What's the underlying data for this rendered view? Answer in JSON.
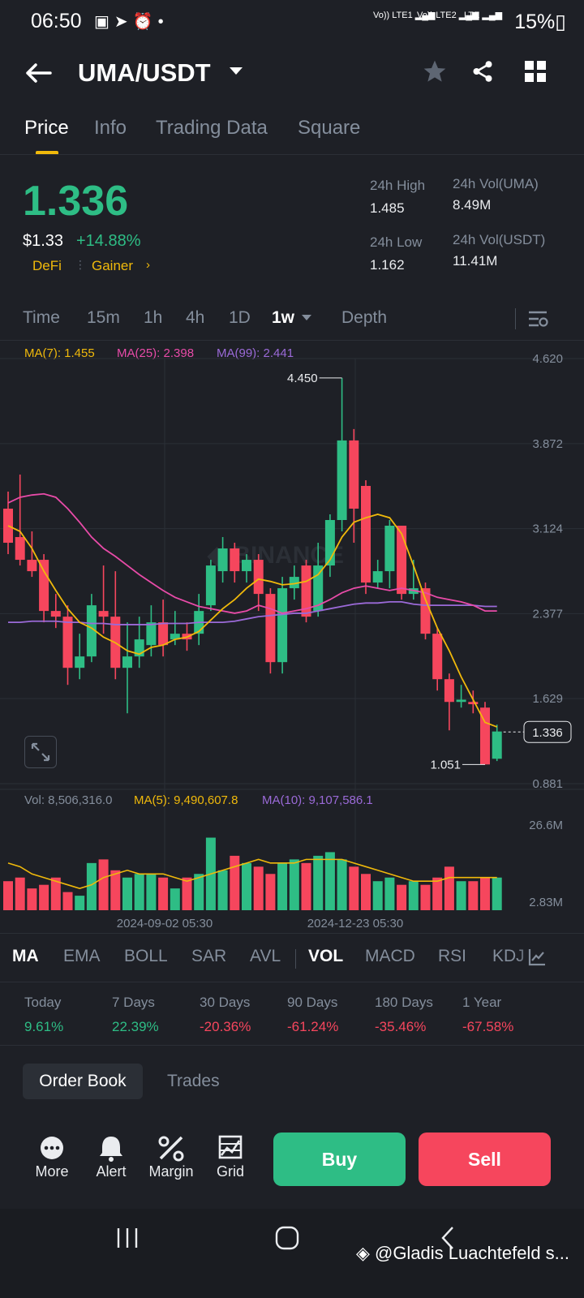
{
  "status_bar": {
    "time": "06:50",
    "left_icons": [
      "image-icon",
      "telegram-icon",
      "alarm-icon",
      "dot-icon"
    ],
    "sim1": "Vo)) LTE1",
    "sim2": "Vo)) LTE2",
    "lte": "LTE",
    "battery": "15%"
  },
  "header": {
    "pair": "UMA/USDT"
  },
  "tabs": [
    "Price",
    "Info",
    "Trading Data",
    "Square"
  ],
  "ticker": {
    "price": "1.336",
    "usd_price": "$1.33",
    "change": "+14.88%",
    "tag1": "DeFi",
    "tag2": "Gainer",
    "high_label": "24h High",
    "high": "1.485",
    "low_label": "24h Low",
    "low": "1.162",
    "vol_base_label": "24h Vol(UMA)",
    "vol_base": "8.49M",
    "vol_quote_label": "24h Vol(USDT)",
    "vol_quote": "11.41M"
  },
  "timeframes": [
    "Time",
    "15m",
    "1h",
    "4h",
    "1D",
    "1w",
    "Depth"
  ],
  "ma_legend": {
    "ma7": "MA(7): 1.455",
    "ma25": "MA(25): 2.398",
    "ma99": "MA(99): 2.441"
  },
  "vol_legend": {
    "vol": "Vol: 8,506,316.0",
    "ma5": "MA(5): 9,490,607.8",
    "ma10": "MA(10): 9,107,586.1"
  },
  "chart_data": {
    "type": "candlestick",
    "price_axis": [
      "4.620",
      "3.872",
      "3.124",
      "2.377",
      "1.629",
      "0.881"
    ],
    "ylim": [
      0.881,
      4.62
    ],
    "vol_axis": [
      "26.6M",
      "2.83M"
    ],
    "x_labels": [
      "2024-09-02 05:30",
      "2024-12-23 05:30"
    ],
    "annotations": {
      "max": "4.450",
      "min": "1.051",
      "last": "1.336"
    },
    "candles": [
      {
        "o": 3.3,
        "c": 3.0,
        "h": 3.45,
        "l": 2.9
      },
      {
        "o": 3.05,
        "c": 2.85,
        "h": 3.6,
        "l": 2.8
      },
      {
        "o": 2.85,
        "c": 2.75,
        "h": 3.1,
        "l": 2.7
      },
      {
        "o": 2.85,
        "c": 2.4,
        "h": 2.9,
        "l": 2.3
      },
      {
        "o": 2.4,
        "c": 2.35,
        "h": 2.55,
        "l": 2.25
      },
      {
        "o": 2.35,
        "c": 1.9,
        "h": 2.45,
        "l": 1.75
      },
      {
        "o": 1.9,
        "c": 2.0,
        "h": 2.2,
        "l": 1.8
      },
      {
        "o": 2.0,
        "c": 2.45,
        "h": 2.55,
        "l": 1.95
      },
      {
        "o": 2.4,
        "c": 2.35,
        "h": 2.8,
        "l": 2.2
      },
      {
        "o": 2.35,
        "c": 1.9,
        "h": 2.75,
        "l": 1.8
      },
      {
        "o": 1.9,
        "c": 2.0,
        "h": 2.3,
        "l": 1.5
      },
      {
        "o": 2.0,
        "c": 2.15,
        "h": 2.35,
        "l": 1.9
      },
      {
        "o": 2.1,
        "c": 2.3,
        "h": 2.45,
        "l": 2.0
      },
      {
        "o": 2.3,
        "c": 2.1,
        "h": 2.5,
        "l": 2.0
      },
      {
        "o": 2.15,
        "c": 2.2,
        "h": 2.4,
        "l": 2.1
      },
      {
        "o": 2.2,
        "c": 2.15,
        "h": 2.3,
        "l": 2.05
      },
      {
        "o": 2.2,
        "c": 2.4,
        "h": 2.55,
        "l": 2.1
      },
      {
        "o": 2.45,
        "c": 2.8,
        "h": 2.85,
        "l": 2.4
      },
      {
        "o": 2.75,
        "c": 2.95,
        "h": 3.05,
        "l": 2.65
      },
      {
        "o": 2.95,
        "c": 2.75,
        "h": 3.0,
        "l": 2.65
      },
      {
        "o": 2.75,
        "c": 2.85,
        "h": 2.9,
        "l": 2.65
      },
      {
        "o": 2.85,
        "c": 2.55,
        "h": 2.9,
        "l": 2.4
      },
      {
        "o": 2.55,
        "c": 1.95,
        "h": 2.6,
        "l": 1.85
      },
      {
        "o": 1.95,
        "c": 2.6,
        "h": 2.7,
        "l": 1.85
      },
      {
        "o": 2.6,
        "c": 2.7,
        "h": 2.8,
        "l": 2.5
      },
      {
        "o": 2.8,
        "c": 2.35,
        "h": 2.85,
        "l": 2.3
      },
      {
        "o": 2.4,
        "c": 2.8,
        "h": 3.0,
        "l": 2.35
      },
      {
        "o": 2.8,
        "c": 3.2,
        "h": 3.25,
        "l": 2.7
      },
      {
        "o": 3.2,
        "c": 3.9,
        "h": 4.45,
        "l": 3.1
      },
      {
        "o": 3.9,
        "c": 3.3,
        "h": 4.0,
        "l": 3.0
      },
      {
        "o": 3.5,
        "c": 2.65,
        "h": 3.55,
        "l": 2.55
      },
      {
        "o": 2.65,
        "c": 2.75,
        "h": 2.85,
        "l": 2.6
      },
      {
        "o": 2.75,
        "c": 3.15,
        "h": 3.2,
        "l": 2.6
      },
      {
        "o": 3.15,
        "c": 2.55,
        "h": 3.15,
        "l": 2.5
      },
      {
        "o": 2.55,
        "c": 2.6,
        "h": 2.85,
        "l": 2.5
      },
      {
        "o": 2.6,
        "c": 2.2,
        "h": 2.65,
        "l": 2.15
      },
      {
        "o": 2.2,
        "c": 1.8,
        "h": 2.25,
        "l": 1.7
      },
      {
        "o": 1.8,
        "c": 1.6,
        "h": 1.85,
        "l": 1.35
      },
      {
        "o": 1.6,
        "c": 1.62,
        "h": 1.75,
        "l": 1.55
      },
      {
        "o": 1.6,
        "c": 1.58,
        "h": 1.7,
        "l": 1.5
      },
      {
        "o": 1.55,
        "c": 1.05,
        "h": 1.6,
        "l": 1.05
      },
      {
        "o": 1.1,
        "c": 1.34,
        "h": 1.4,
        "l": 1.08
      }
    ],
    "ma7": [
      3.15,
      3.1,
      2.95,
      2.75,
      2.58,
      2.42,
      2.3,
      2.25,
      2.17,
      2.12,
      2.05,
      2.02,
      2.08,
      2.1,
      2.15,
      2.17,
      2.22,
      2.32,
      2.42,
      2.5,
      2.6,
      2.68,
      2.66,
      2.63,
      2.64,
      2.66,
      2.72,
      2.85,
      3.05,
      3.18,
      3.22,
      3.25,
      3.22,
      3.08,
      2.8,
      2.5,
      2.25,
      2.05,
      1.82,
      1.62,
      1.42,
      1.38
    ],
    "ma25": [
      3.35,
      3.4,
      3.42,
      3.43,
      3.4,
      3.3,
      3.18,
      3.05,
      2.95,
      2.88,
      2.8,
      2.72,
      2.65,
      2.58,
      2.52,
      2.48,
      2.44,
      2.42,
      2.4,
      2.38,
      2.4,
      2.45,
      2.42,
      2.38,
      2.4,
      2.42,
      2.45,
      2.5,
      2.56,
      2.6,
      2.62,
      2.6,
      2.58,
      2.6,
      2.58,
      2.56,
      2.52,
      2.5,
      2.48,
      2.45,
      2.4,
      2.4
    ],
    "ma99": [
      2.3,
      2.3,
      2.31,
      2.31,
      2.31,
      2.3,
      2.3,
      2.29,
      2.29,
      2.28,
      2.28,
      2.28,
      2.28,
      2.29,
      2.29,
      2.29,
      2.3,
      2.3,
      2.3,
      2.31,
      2.33,
      2.35,
      2.36,
      2.37,
      2.38,
      2.38,
      2.4,
      2.42,
      2.44,
      2.46,
      2.47,
      2.47,
      2.48,
      2.48,
      2.46,
      2.45,
      2.45,
      2.45,
      2.45,
      2.45,
      2.44,
      2.44
    ],
    "volumes": [
      8,
      9,
      6,
      7,
      9,
      5,
      4,
      13,
      14,
      11,
      9,
      10,
      10,
      9,
      6,
      9,
      10,
      20,
      11,
      15,
      13,
      12,
      10,
      13,
      14,
      13,
      15,
      16,
      14,
      12,
      10,
      8,
      9,
      7,
      8,
      7,
      9,
      12,
      8,
      8,
      9,
      9
    ],
    "vol_ma": [
      13,
      12,
      10,
      9,
      8,
      7,
      6,
      7,
      9,
      10,
      11,
      10,
      10,
      10,
      9,
      8,
      9,
      10,
      11,
      12,
      13,
      14,
      13,
      13,
      13,
      14,
      14,
      14,
      14,
      13,
      12,
      11,
      10,
      9,
      8,
      8,
      8,
      9,
      9,
      9,
      9,
      9
    ],
    "vol_ylim": [
      0,
      26.6
    ]
  },
  "indicators": [
    "MA",
    "EMA",
    "BOLL",
    "SAR",
    "AVL",
    "VOL",
    "MACD",
    "RSI",
    "KDJ"
  ],
  "performance": [
    {
      "label": "Today",
      "value": "9.61%",
      "dir": "up"
    },
    {
      "label": "7 Days",
      "value": "22.39%",
      "dir": "up"
    },
    {
      "label": "30 Days",
      "value": "-20.36%",
      "dir": "down"
    },
    {
      "label": "90 Days",
      "value": "-61.24%",
      "dir": "down"
    },
    {
      "label": "180 Days",
      "value": "-35.46%",
      "dir": "down"
    },
    {
      "label": "1 Year",
      "value": "-67.58%",
      "dir": "down"
    }
  ],
  "book_tabs": {
    "order_book": "Order Book",
    "trades": "Trades"
  },
  "bottom_bar": {
    "more": "More",
    "alert": "Alert",
    "margin": "Margin",
    "grid": "Grid",
    "buy": "Buy",
    "sell": "Sell"
  },
  "watermark": "@Gladis Luachtefeld s..."
}
